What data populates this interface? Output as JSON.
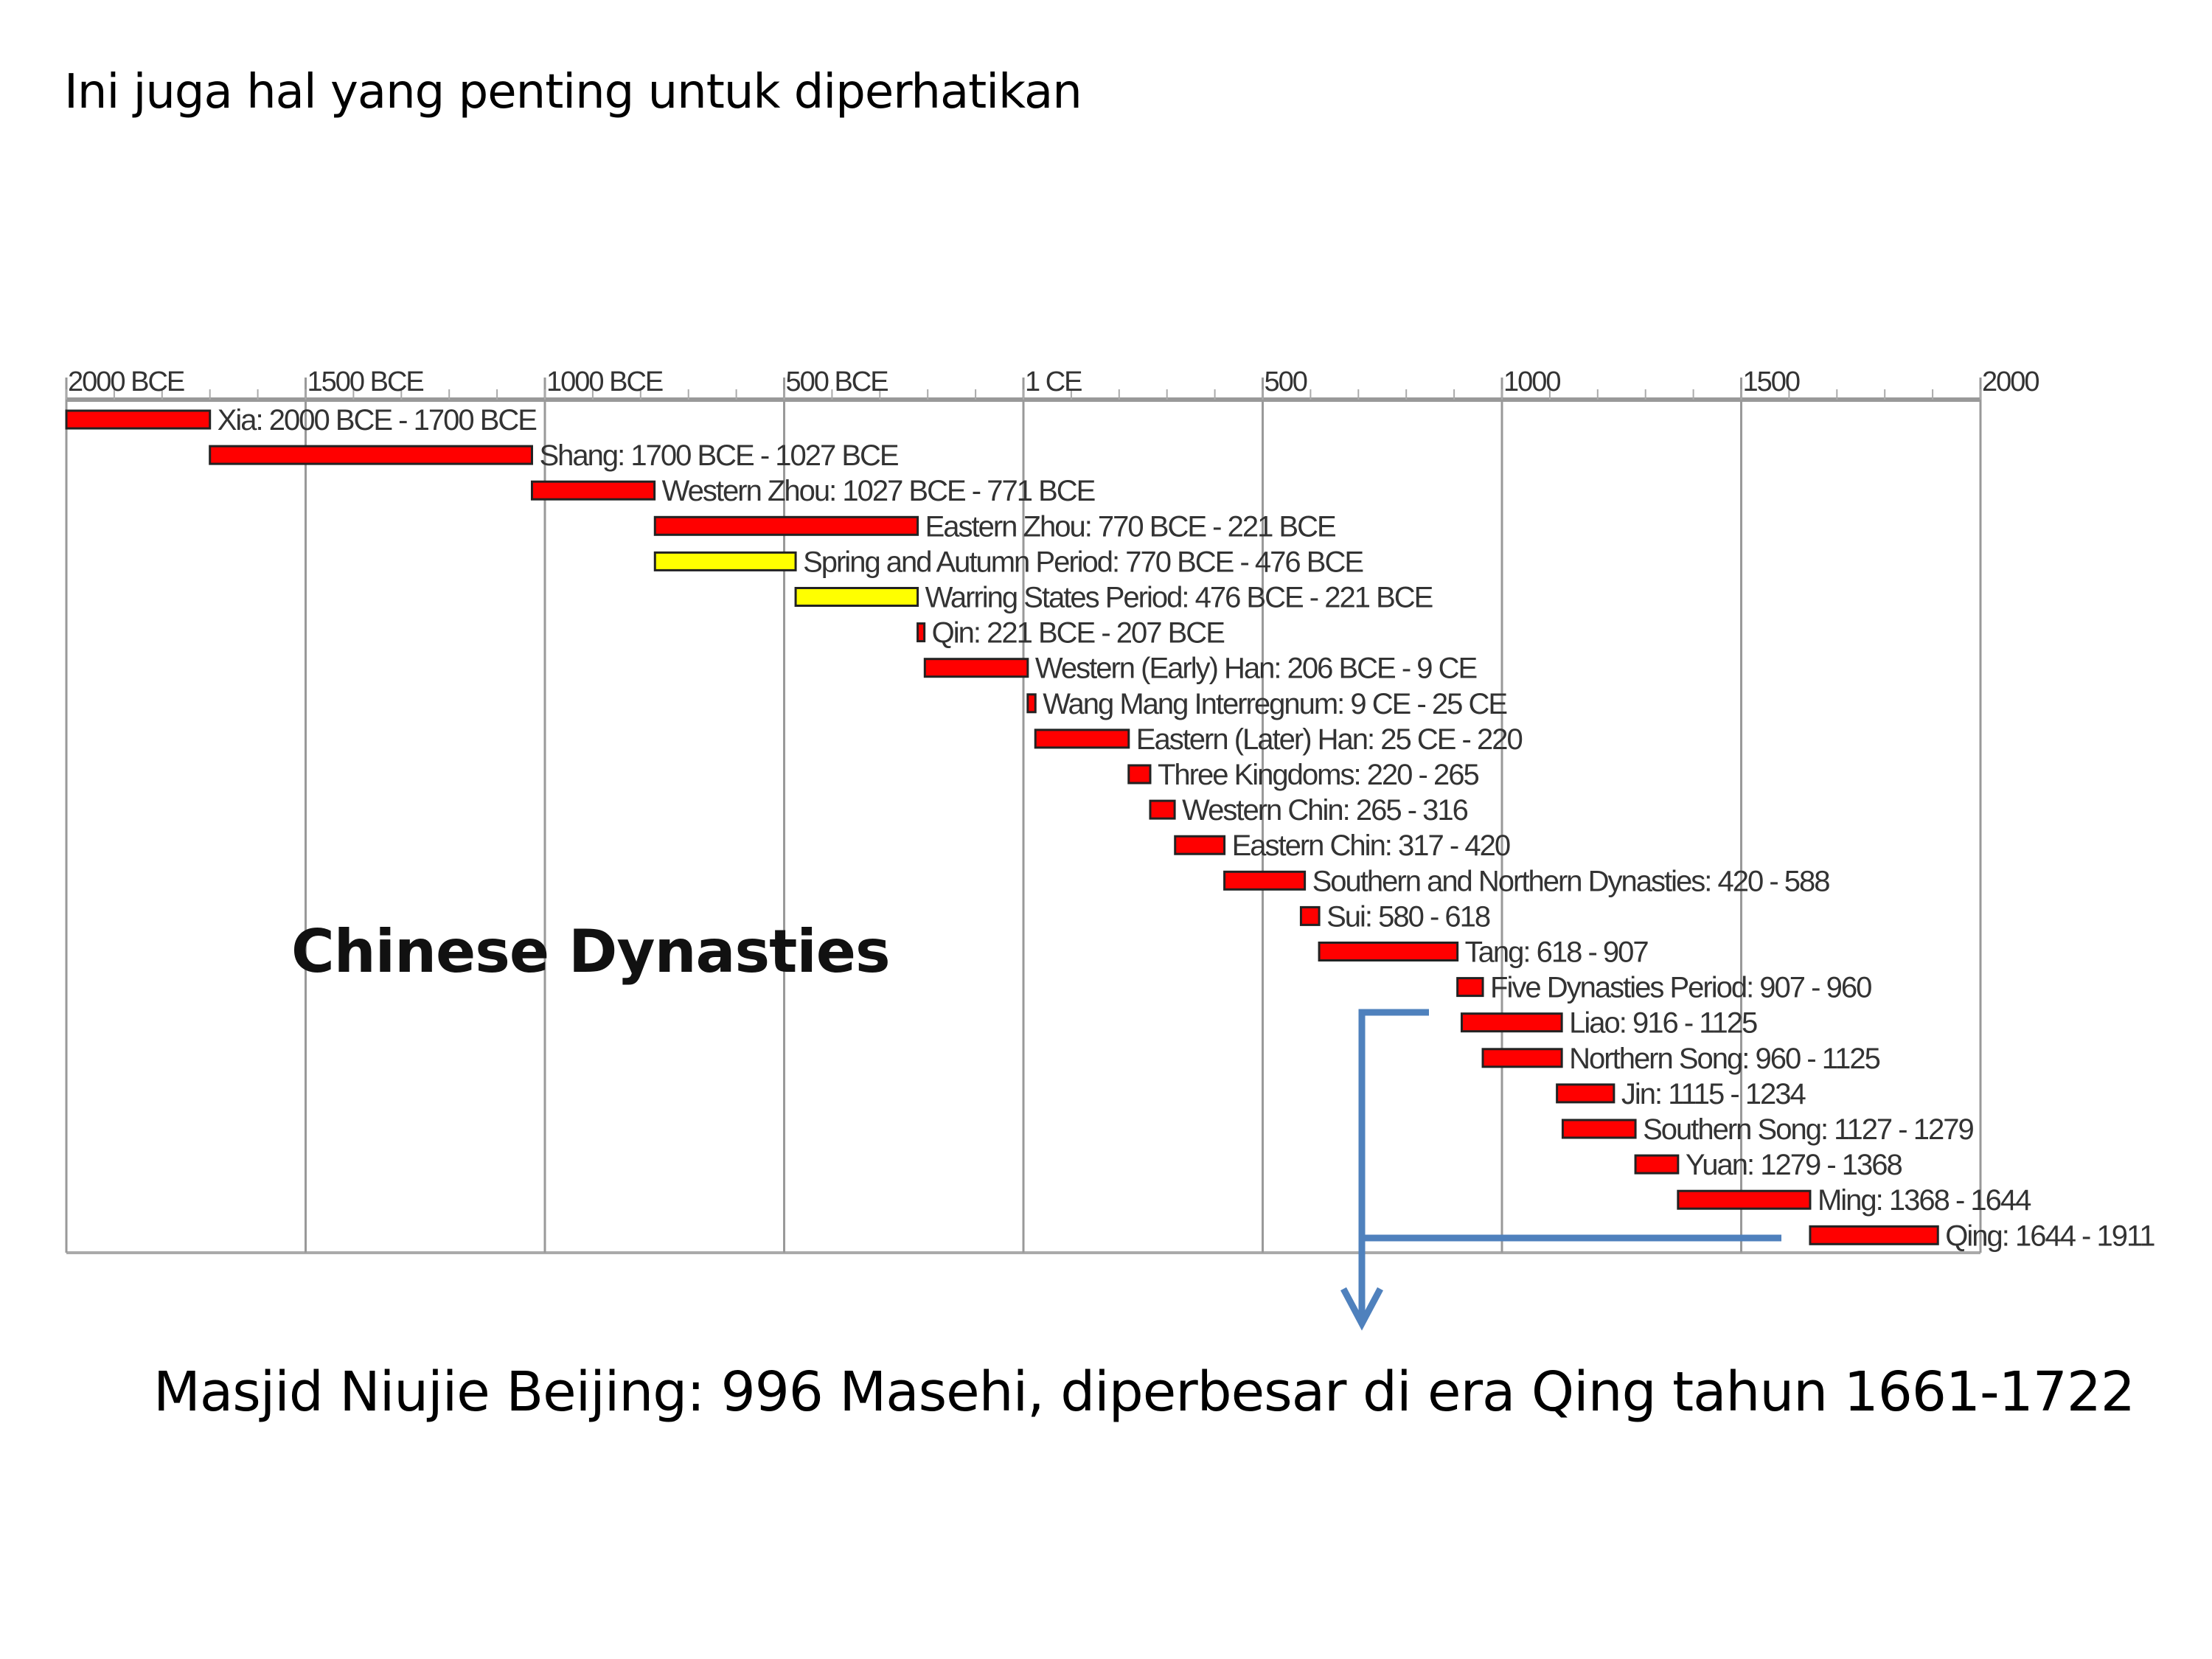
{
  "slide": {
    "title": "Ini juga hal yang penting untuk diperhatikan",
    "caption": "Masjid Niujie Beijing: 996 Masehi, diperbesar di era Qing tahun 1661-1722",
    "arrow_color": "#4f81bd"
  },
  "chart_data": {
    "type": "timeline",
    "title": "Chinese Dynasties",
    "xlim": [
      -2000,
      2000
    ],
    "grid": true,
    "ticks": [
      {
        "value": -2000,
        "label": "2000 BCE"
      },
      {
        "value": -1500,
        "label": "1500 BCE"
      },
      {
        "value": -1000,
        "label": "1000 BCE"
      },
      {
        "value": -500,
        "label": "500 BCE"
      },
      {
        "value": 0,
        "label": "1 CE"
      },
      {
        "value": 500,
        "label": "500"
      },
      {
        "value": 1000,
        "label": "1000"
      },
      {
        "value": 1500,
        "label": "1500"
      },
      {
        "value": 2000,
        "label": "2000"
      }
    ],
    "colors": {
      "dynasty": "#ff0000",
      "period": "#ffff00"
    },
    "periods": [
      {
        "label": "Xia: 2000 BCE - 1700 BCE",
        "start": -2000,
        "end": -1700,
        "color": "dynasty"
      },
      {
        "label": "Shang: 1700 BCE - 1027 BCE",
        "start": -1700,
        "end": -1027,
        "color": "dynasty"
      },
      {
        "label": "Western Zhou: 1027 BCE - 771 BCE",
        "start": -1027,
        "end": -771,
        "color": "dynasty"
      },
      {
        "label": "Eastern Zhou: 770 BCE - 221 BCE",
        "start": -770,
        "end": -221,
        "color": "dynasty"
      },
      {
        "label": "Spring and Autumn Period: 770 BCE - 476 BCE",
        "start": -770,
        "end": -476,
        "color": "period"
      },
      {
        "label": "Warring States Period: 476 BCE - 221 BCE",
        "start": -476,
        "end": -221,
        "color": "period"
      },
      {
        "label": "Qin: 221 BCE - 207 BCE",
        "start": -221,
        "end": -207,
        "color": "dynasty"
      },
      {
        "label": "Western (Early) Han: 206 BCE - 9 CE",
        "start": -206,
        "end": 9,
        "color": "dynasty"
      },
      {
        "label": "Wang Mang Interregnum: 9 CE - 25 CE",
        "start": 9,
        "end": 25,
        "color": "dynasty"
      },
      {
        "label": "Eastern (Later) Han: 25 CE - 220",
        "start": 25,
        "end": 220,
        "color": "dynasty"
      },
      {
        "label": "Three Kingdoms: 220 - 265",
        "start": 220,
        "end": 265,
        "color": "dynasty"
      },
      {
        "label": "Western Chin: 265 - 316",
        "start": 265,
        "end": 316,
        "color": "dynasty"
      },
      {
        "label": "Eastern Chin: 317 - 420",
        "start": 317,
        "end": 420,
        "color": "dynasty"
      },
      {
        "label": "Southern and Northern Dynasties: 420 - 588",
        "start": 420,
        "end": 588,
        "color": "dynasty"
      },
      {
        "label": "Sui: 580 - 618",
        "start": 580,
        "end": 618,
        "color": "dynasty"
      },
      {
        "label": "Tang: 618 - 907",
        "start": 618,
        "end": 907,
        "color": "dynasty"
      },
      {
        "label": "Five Dynasties Period: 907 - 960",
        "start": 907,
        "end": 960,
        "color": "dynasty"
      },
      {
        "label": "Liao: 916 - 1125",
        "start": 916,
        "end": 1125,
        "color": "dynasty"
      },
      {
        "label": "Northern Song: 960 - 1125",
        "start": 960,
        "end": 1125,
        "color": "dynasty"
      },
      {
        "label": "Jin: 1115 - 1234",
        "start": 1115,
        "end": 1234,
        "color": "dynasty"
      },
      {
        "label": "Southern Song: 1127 - 1279",
        "start": 1127,
        "end": 1279,
        "color": "dynasty"
      },
      {
        "label": "Yuan: 1279 - 1368",
        "start": 1279,
        "end": 1368,
        "color": "dynasty"
      },
      {
        "label": "Ming: 1368 - 1644",
        "start": 1368,
        "end": 1644,
        "color": "dynasty"
      },
      {
        "label": "Qing: 1644 - 1911",
        "start": 1644,
        "end": 1911,
        "color": "dynasty"
      }
    ]
  }
}
